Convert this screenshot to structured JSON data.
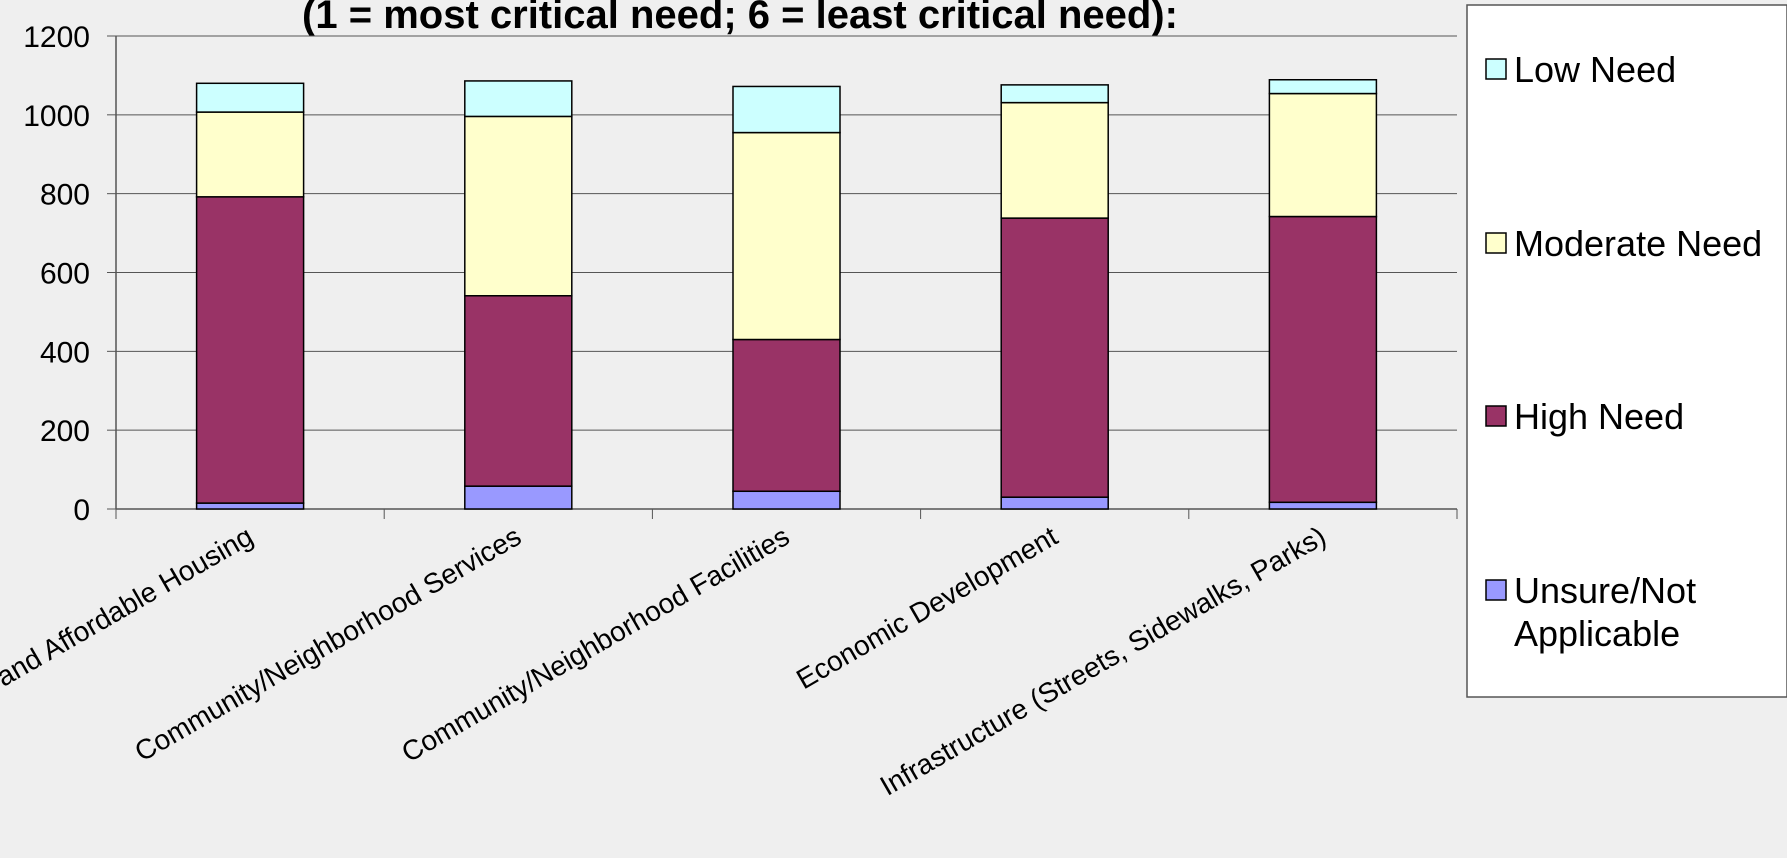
{
  "chart_data": {
    "type": "bar",
    "stacked": true,
    "title": "(1 = most critical need; 6 = least critical need):",
    "xlabel": "",
    "ylabel": "",
    "ylim": [
      0,
      1200
    ],
    "yticks": [
      0,
      200,
      400,
      600,
      800,
      1000,
      1200
    ],
    "grid": true,
    "legend_position": "right",
    "categories": [
      "Owner-Occupied and Affordable Housing",
      "Community/Neighborhood Services",
      "Community/Neighborhood Facilities",
      "Economic Development",
      "Infrastructure (Streets, Sidewalks, Parks)"
    ],
    "series": [
      {
        "name": "Unsure/Not Applicable",
        "color": "#9999ff",
        "values": [
          15,
          58,
          45,
          30,
          17
        ]
      },
      {
        "name": "High Need",
        "color": "#993366",
        "values": [
          777,
          483,
          385,
          708,
          725
        ]
      },
      {
        "name": "Moderate Need",
        "color": "#ffffcc",
        "values": [
          215,
          455,
          525,
          293,
          312
        ]
      },
      {
        "name": "Low Need",
        "color": "#ccffff",
        "values": [
          73,
          90,
          117,
          45,
          35
        ]
      }
    ]
  }
}
